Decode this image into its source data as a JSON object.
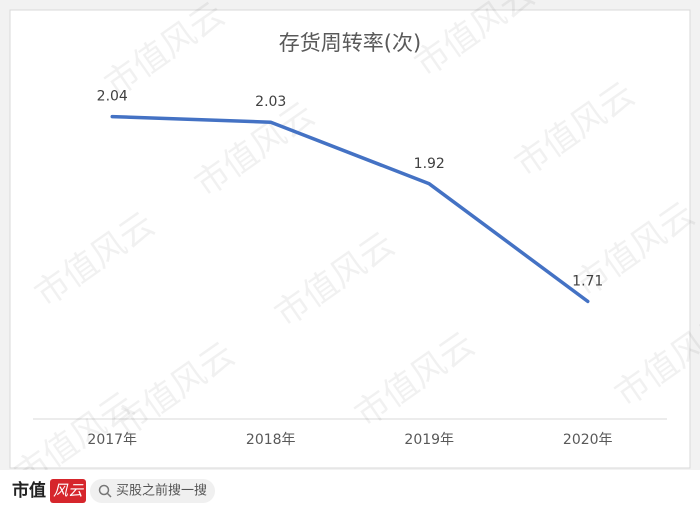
{
  "chart_data": {
    "type": "line",
    "title": "存货周转率(次)",
    "categories": [
      "2017年",
      "2018年",
      "2019年",
      "2020年"
    ],
    "series": [
      {
        "name": "存货周转率",
        "color": "#4472c4",
        "values": [
          2.04,
          2.03,
          1.92,
          1.71
        ]
      }
    ],
    "ylim": [
      1.5,
      2.1
    ]
  },
  "watermark": "市值风云",
  "footer": {
    "brand": "市值",
    "stamp": "风云",
    "search": "买股之前搜一搜"
  }
}
